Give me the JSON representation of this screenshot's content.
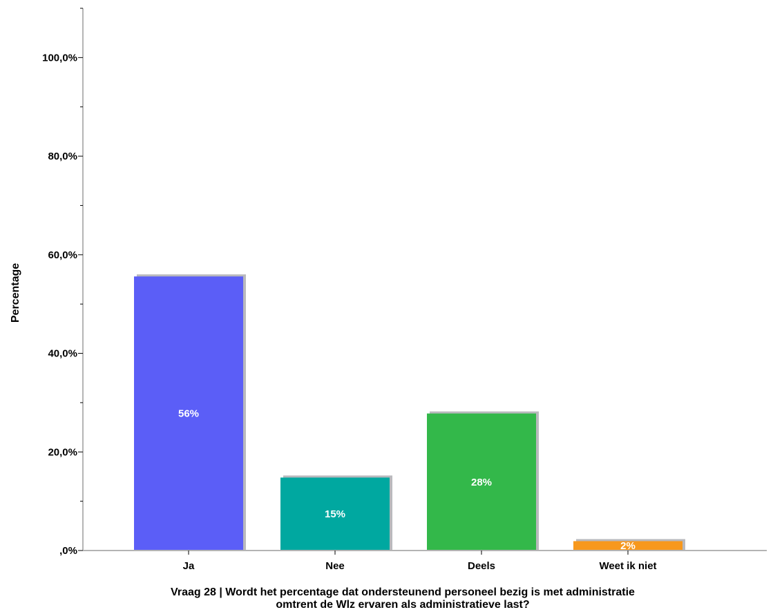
{
  "chart_data": {
    "type": "bar",
    "categories": [
      "Ja",
      "Nee",
      "Deels",
      "Weet ik niet"
    ],
    "values": [
      55.6,
      14.8,
      27.8,
      1.9
    ],
    "data_labels": [
      "56%",
      "15%",
      "28%",
      "2%"
    ],
    "colors": [
      "#5b5ef7",
      "#00a8a0",
      "#33b84a",
      "#f7981d"
    ],
    "ylabel": "Percentage",
    "xlabel_lines": [
      "Vraag 28 | Wordt het percentage dat ondersteunend personeel bezig is met administratie",
      "omtrent de Wlz ervaren als administratieve last?"
    ],
    "ylim": [
      0,
      110
    ],
    "yticks": [
      0,
      20,
      40,
      60,
      80,
      100
    ],
    "ytick_labels": [
      ",0%",
      "20,0%",
      "40,0%",
      "60,0%",
      "80,0%",
      "100,0%"
    ],
    "grid": false,
    "legend": "none"
  }
}
